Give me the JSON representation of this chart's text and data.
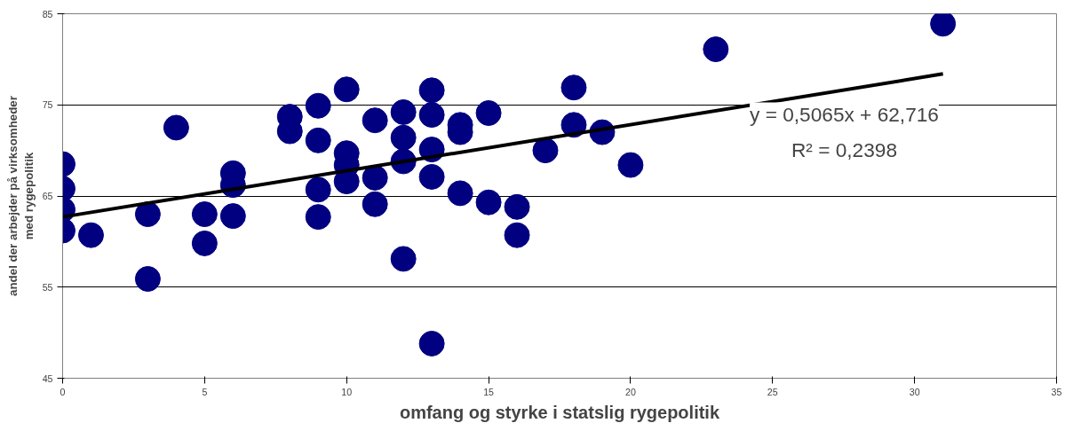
{
  "chart_data": {
    "type": "scatter",
    "xlabel": "omfang og styrke i statslig rygepolitik",
    "ylabel": "andel der arbejder på virksomheder\nmed rygepolitik",
    "xlim": [
      0,
      35
    ],
    "xticks": [
      0,
      5,
      10,
      15,
      20,
      25,
      30,
      35
    ],
    "ylim": [
      45,
      85
    ],
    "yticks": [
      45,
      55,
      65,
      75,
      85
    ],
    "grid": "y",
    "series": [
      {
        "marker": "circle",
        "color": "#000080",
        "x": [
          0,
          0,
          0,
          0,
          1,
          3,
          3,
          4,
          5,
          5,
          6,
          6,
          6,
          8,
          8,
          9,
          9,
          9,
          9,
          10,
          10,
          10,
          10,
          11,
          11,
          11,
          12,
          12,
          12,
          12,
          13,
          13,
          13,
          13,
          13,
          14,
          14,
          14,
          15,
          15,
          16,
          16,
          17,
          18,
          18,
          19,
          20,
          23,
          31
        ],
        "values": [
          68.5,
          65.8,
          63.5,
          61.2,
          60.7,
          63.0,
          55.9,
          72.5,
          63.0,
          59.8,
          67.5,
          66.2,
          62.8,
          73.7,
          72.1,
          74.9,
          71.1,
          65.7,
          62.7,
          76.7,
          69.7,
          68.4,
          66.6,
          73.3,
          67.0,
          64.1,
          74.2,
          71.4,
          68.8,
          58.1,
          76.6,
          73.9,
          70.1,
          67.1,
          48.8,
          72.8,
          72.0,
          65.3,
          74.1,
          64.3,
          63.8,
          60.7,
          70.0,
          76.9,
          72.8,
          72.0,
          68.4,
          81.1,
          83.9
        ]
      },
      {
        "type": "line",
        "color": "#000000",
        "x": [
          0,
          31
        ],
        "values": [
          62.7,
          78.4
        ]
      }
    ],
    "annotations": [
      "y = 0,5065x + 62,716",
      "R² = 0,2398"
    ]
  }
}
